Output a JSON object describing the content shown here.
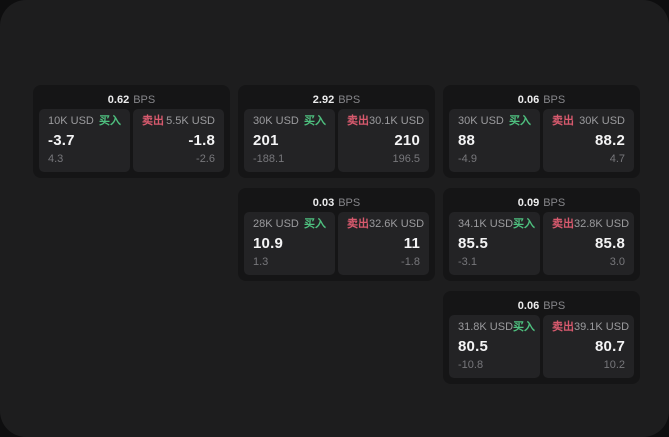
{
  "labels": {
    "bps": "BPS",
    "buy": "买入",
    "sell": "卖出"
  },
  "colors": {
    "buy": "#4ec07f",
    "sell": "#d85a6e"
  },
  "cards": [
    {
      "row": 1,
      "col": 1,
      "bps": "0.62",
      "buy": {
        "size": "10K USD",
        "price": "-3.7",
        "delta": "4.3"
      },
      "sell": {
        "size": "5.5K USD",
        "price": "-1.8",
        "delta": "-2.6"
      }
    },
    {
      "row": 1,
      "col": 2,
      "bps": "2.92",
      "buy": {
        "size": "30K USD",
        "price": "201",
        "delta": "-188.1"
      },
      "sell": {
        "size": "30.1K USD",
        "price": "210",
        "delta": "196.5"
      }
    },
    {
      "row": 1,
      "col": 3,
      "bps": "0.06",
      "buy": {
        "size": "30K USD",
        "price": "88",
        "delta": "-4.9"
      },
      "sell": {
        "size": "30K USD",
        "price": "88.2",
        "delta": "4.7"
      }
    },
    {
      "row": 2,
      "col": 2,
      "bps": "0.03",
      "buy": {
        "size": "28K USD",
        "price": "10.9",
        "delta": "1.3"
      },
      "sell": {
        "size": "32.6K USD",
        "price": "11",
        "delta": "-1.8"
      }
    },
    {
      "row": 2,
      "col": 3,
      "bps": "0.09",
      "buy": {
        "size": "34.1K USD",
        "price": "85.5",
        "delta": "-3.1"
      },
      "sell": {
        "size": "32.8K USD",
        "price": "85.8",
        "delta": "3.0"
      }
    },
    {
      "row": 3,
      "col": 3,
      "bps": "0.06",
      "buy": {
        "size": "31.8K USD",
        "price": "80.5",
        "delta": "-10.8"
      },
      "sell": {
        "size": "39.1K USD",
        "price": "80.7",
        "delta": "10.2"
      }
    }
  ]
}
